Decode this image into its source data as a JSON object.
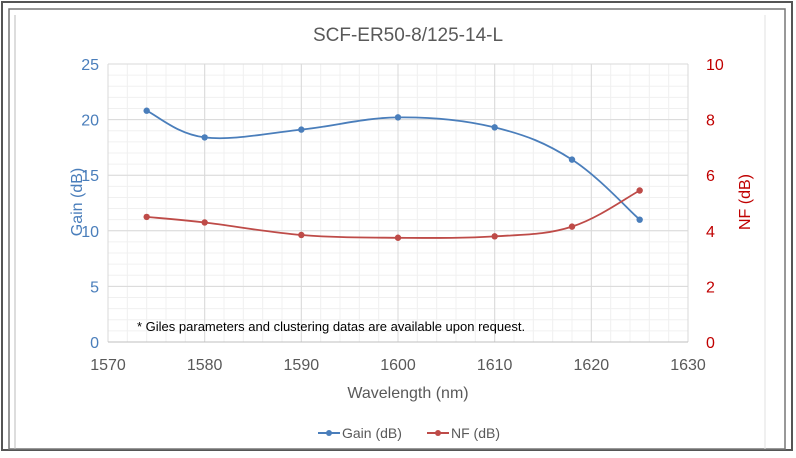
{
  "chart_data": {
    "type": "line",
    "title": "SCF-ER50-8/125-14-L",
    "xlabel": "Wavelength (nm)",
    "ylabel_left": "Gain (dB)",
    "ylabel_right": "NF (dB)",
    "xlim": [
      1570,
      1630
    ],
    "ylim_left": [
      0,
      25
    ],
    "ylim_right": [
      0,
      10
    ],
    "x_ticks": [
      "1570",
      "1580",
      "1590",
      "1600",
      "1610",
      "1620",
      "1630"
    ],
    "y_left_ticks": [
      "0",
      "5",
      "10",
      "15",
      "20",
      "25"
    ],
    "y_right_ticks": [
      "0",
      "2",
      "4",
      "6",
      "8",
      "10"
    ],
    "grid": true,
    "legend_position": "bottom",
    "annotation": "* Giles parameters and clustering datas are available upon request.",
    "colors": {
      "gain": "#4a7ebb",
      "nf": "#be4b48",
      "left_axis_text": "#4a7ebb",
      "right_axis_text": "#c00000"
    },
    "series": [
      {
        "name": "Gain (dB)",
        "axis": "left",
        "x": [
          1574,
          1580,
          1590,
          1600,
          1610,
          1618,
          1625
        ],
        "values": [
          20.8,
          18.4,
          19.1,
          20.2,
          19.3,
          16.4,
          11.0
        ]
      },
      {
        "name": "NF (dB)",
        "axis": "right",
        "x": [
          1574,
          1580,
          1590,
          1600,
          1610,
          1618,
          1625
        ],
        "values": [
          4.5,
          4.3,
          3.85,
          3.75,
          3.8,
          4.15,
          5.45
        ]
      }
    ]
  }
}
